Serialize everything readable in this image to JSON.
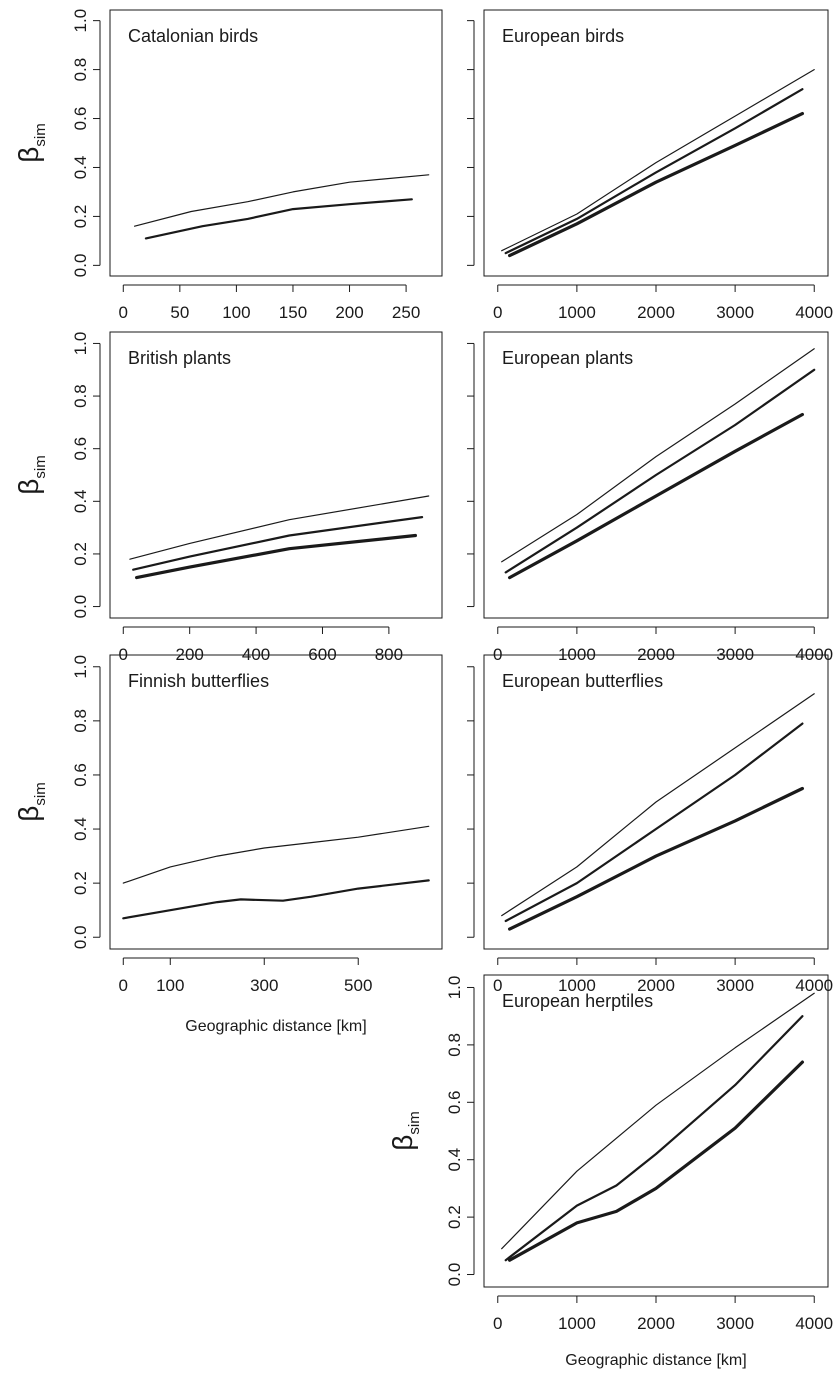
{
  "figure": {
    "xlabel": "Geographic distance [km]",
    "ylabel_main": "β",
    "ylabel_sub": "sim"
  },
  "chart_data": [
    {
      "type": "line",
      "title": "Catalonian birds",
      "xlabel": "",
      "ylabel": "βsim",
      "xlim": [
        0,
        270
      ],
      "ylim": [
        0,
        1
      ],
      "xticks": [
        0,
        50,
        100,
        150,
        200,
        250
      ],
      "yticks": [
        "0.0",
        "0.2",
        "0.4",
        "0.6",
        "0.8",
        "1.0"
      ],
      "series": [
        {
          "x": [
            10,
            60,
            110,
            150,
            200,
            270
          ],
          "values": [
            0.16,
            0.22,
            0.26,
            0.3,
            0.34,
            0.37
          ],
          "width": 1.2
        },
        {
          "x": [
            20,
            70,
            110,
            150,
            200,
            255
          ],
          "values": [
            0.11,
            0.16,
            0.19,
            0.23,
            0.25,
            0.27
          ],
          "width": 2.2
        }
      ]
    },
    {
      "type": "line",
      "title": "European birds",
      "xlabel": "",
      "ylabel": "",
      "xlim": [
        0,
        4000
      ],
      "ylim": [
        0,
        1
      ],
      "xticks": [
        0,
        1000,
        2000,
        3000,
        4000
      ],
      "yticks": [
        "",
        "",
        "",
        "",
        "",
        ""
      ],
      "series": [
        {
          "x": [
            50,
            1000,
            2000,
            3000,
            4000
          ],
          "values": [
            0.06,
            0.21,
            0.42,
            0.61,
            0.8
          ],
          "width": 1.2
        },
        {
          "x": [
            100,
            1000,
            2000,
            3000,
            3850
          ],
          "values": [
            0.05,
            0.19,
            0.38,
            0.56,
            0.72
          ],
          "width": 2.2
        },
        {
          "x": [
            150,
            1000,
            2000,
            3000,
            3850
          ],
          "values": [
            0.04,
            0.17,
            0.34,
            0.49,
            0.62
          ],
          "width": 3.2
        }
      ]
    },
    {
      "type": "line",
      "title": "British plants",
      "xlabel": "",
      "ylabel": "βsim",
      "xlim": [
        0,
        920
      ],
      "ylim": [
        0,
        1
      ],
      "xticks": [
        0,
        200,
        400,
        600,
        800
      ],
      "yticks": [
        "0.0",
        "0.2",
        "0.4",
        "0.6",
        "0.8",
        "1.0"
      ],
      "series": [
        {
          "x": [
            20,
            200,
            500,
            920
          ],
          "values": [
            0.18,
            0.24,
            0.33,
            0.42
          ],
          "width": 1.2
        },
        {
          "x": [
            30,
            200,
            500,
            900
          ],
          "values": [
            0.14,
            0.19,
            0.27,
            0.34
          ],
          "width": 2.2
        },
        {
          "x": [
            40,
            200,
            500,
            880
          ],
          "values": [
            0.11,
            0.15,
            0.22,
            0.27
          ],
          "width": 3.2
        }
      ]
    },
    {
      "type": "line",
      "title": "European plants",
      "xlabel": "",
      "ylabel": "",
      "xlim": [
        0,
        4000
      ],
      "ylim": [
        0,
        1
      ],
      "xticks": [
        0,
        1000,
        2000,
        3000,
        4000
      ],
      "yticks": [
        "",
        "",
        "",
        "",
        "",
        ""
      ],
      "series": [
        {
          "x": [
            50,
            1000,
            2000,
            3000,
            4000
          ],
          "values": [
            0.17,
            0.35,
            0.57,
            0.77,
            0.98
          ],
          "width": 1.2
        },
        {
          "x": [
            100,
            1000,
            2000,
            3000,
            4000
          ],
          "values": [
            0.13,
            0.3,
            0.5,
            0.69,
            0.9
          ],
          "width": 2.2
        },
        {
          "x": [
            150,
            1000,
            2000,
            3000,
            3850
          ],
          "values": [
            0.11,
            0.25,
            0.42,
            0.59,
            0.73
          ],
          "width": 3.2
        }
      ]
    },
    {
      "type": "line",
      "title": "Finnish butterflies",
      "xlabel": "Geographic distance [km]",
      "ylabel": "βsim",
      "xlim": [
        0,
        650
      ],
      "ylim": [
        0,
        1
      ],
      "xticks": [
        0,
        100,
        300,
        500
      ],
      "yticks": [
        "0.0",
        "0.2",
        "0.4",
        "0.6",
        "0.8",
        "1.0"
      ],
      "series": [
        {
          "x": [
            0,
            100,
            200,
            300,
            400,
            500,
            650
          ],
          "values": [
            0.2,
            0.26,
            0.3,
            0.33,
            0.35,
            0.37,
            0.41
          ],
          "width": 1.2
        },
        {
          "x": [
            0,
            100,
            200,
            250,
            340,
            400,
            500,
            650
          ],
          "values": [
            0.07,
            0.1,
            0.13,
            0.14,
            0.135,
            0.15,
            0.18,
            0.21
          ],
          "width": 2.2
        }
      ]
    },
    {
      "type": "line",
      "title": "European butterflies",
      "xlabel": "",
      "ylabel": "",
      "xlim": [
        0,
        4000
      ],
      "ylim": [
        0,
        1
      ],
      "xticks": [
        0,
        1000,
        2000,
        3000,
        4000
      ],
      "yticks": [
        "",
        "",
        "",
        "",
        "",
        ""
      ],
      "series": [
        {
          "x": [
            50,
            1000,
            2000,
            3000,
            4000
          ],
          "values": [
            0.08,
            0.26,
            0.5,
            0.7,
            0.9
          ],
          "width": 1.2
        },
        {
          "x": [
            100,
            1000,
            2000,
            3000,
            3850
          ],
          "values": [
            0.06,
            0.2,
            0.4,
            0.6,
            0.79
          ],
          "width": 2.2
        },
        {
          "x": [
            150,
            1000,
            2000,
            3000,
            3850
          ],
          "values": [
            0.03,
            0.15,
            0.3,
            0.43,
            0.55
          ],
          "width": 3.2
        }
      ]
    },
    {
      "type": "line",
      "title": "European herptiles",
      "xlabel": "Geographic distance [km]",
      "ylabel": "βsim",
      "xlim": [
        0,
        4000
      ],
      "ylim": [
        0,
        1
      ],
      "xticks": [
        0,
        1000,
        2000,
        3000,
        4000
      ],
      "yticks": [
        "0.0",
        "0.2",
        "0.4",
        "0.6",
        "0.8",
        "1.0"
      ],
      "series": [
        {
          "x": [
            50,
            1000,
            2000,
            3000,
            4000
          ],
          "values": [
            0.09,
            0.36,
            0.59,
            0.79,
            0.98
          ],
          "width": 1.2
        },
        {
          "x": [
            100,
            1000,
            1500,
            2000,
            3000,
            3850
          ],
          "values": [
            0.05,
            0.24,
            0.31,
            0.42,
            0.66,
            0.9
          ],
          "width": 2.2
        },
        {
          "x": [
            150,
            1000,
            1500,
            2000,
            3000,
            3850
          ],
          "values": [
            0.05,
            0.18,
            0.22,
            0.3,
            0.51,
            0.74
          ],
          "width": 3.2
        }
      ]
    }
  ]
}
